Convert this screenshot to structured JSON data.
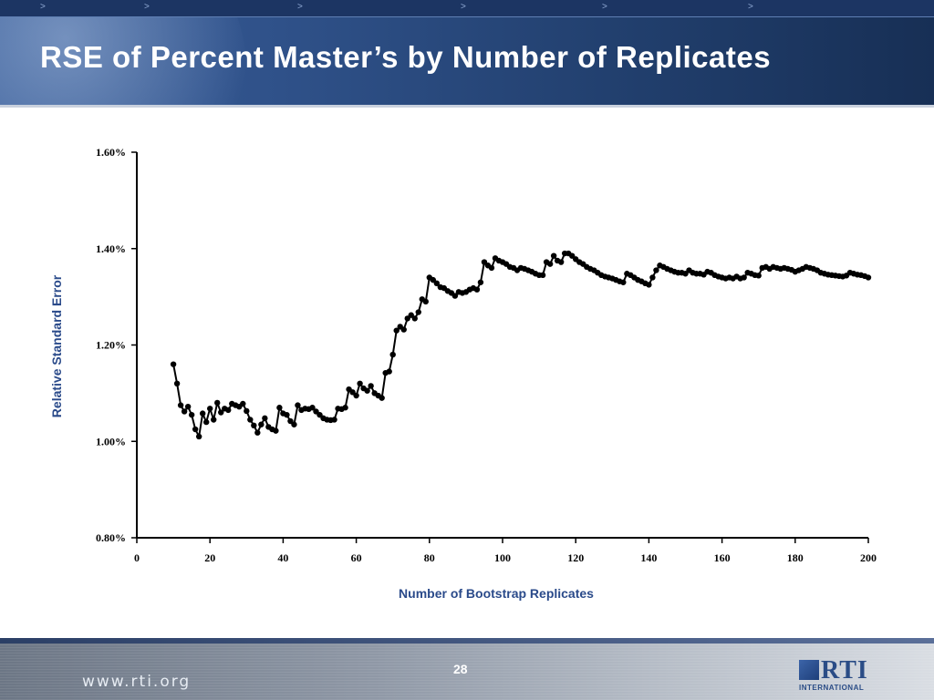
{
  "slide": {
    "title": "RSE of Percent Master’s by Number of Replicates",
    "page_number": "28",
    "footer_url": "www.rti.org",
    "logo": {
      "word": "RTI",
      "sub": "INTERNATIONAL"
    }
  },
  "colors": {
    "header": "#2f5189",
    "series": "#000000",
    "axis_label": "#2a4a8a",
    "title_text": "#ffffff"
  },
  "chart_data": {
    "type": "line",
    "title": "",
    "xlabel": "Number of Bootstrap Replicates",
    "ylabel": "Relative Standard Error",
    "xlim": [
      0,
      200
    ],
    "ylim": [
      0.8,
      1.6
    ],
    "x_ticks": [
      0,
      20,
      40,
      60,
      80,
      100,
      120,
      140,
      160,
      180,
      200
    ],
    "x_tick_labels": [
      "0",
      "20",
      "40",
      "60",
      "80",
      "100",
      "120",
      "140",
      "160",
      "180",
      "200"
    ],
    "y_ticks": [
      0.8,
      1.0,
      1.2,
      1.4,
      1.6
    ],
    "y_tick_labels": [
      "0.80%",
      "1.00%",
      "1.20%",
      "1.40%",
      "1.60%"
    ],
    "grid": false,
    "markers": true,
    "series": [
      {
        "x_start": 10,
        "x_step": 1,
        "values": [
          1.16,
          1.12,
          1.075,
          1.062,
          1.072,
          1.055,
          1.025,
          1.01,
          1.058,
          1.04,
          1.068,
          1.045,
          1.08,
          1.06,
          1.068,
          1.065,
          1.078,
          1.075,
          1.072,
          1.078,
          1.063,
          1.045,
          1.033,
          1.018,
          1.035,
          1.048,
          1.03,
          1.025,
          1.022,
          1.07,
          1.058,
          1.055,
          1.042,
          1.035,
          1.075,
          1.065,
          1.068,
          1.067,
          1.07,
          1.062,
          1.055,
          1.048,
          1.045,
          1.044,
          1.045,
          1.068,
          1.067,
          1.07,
          1.108,
          1.102,
          1.095,
          1.12,
          1.11,
          1.105,
          1.115,
          1.1,
          1.095,
          1.09,
          1.142,
          1.145,
          1.18,
          1.23,
          1.238,
          1.232,
          1.255,
          1.262,
          1.255,
          1.268,
          1.295,
          1.29,
          1.34,
          1.335,
          1.328,
          1.32,
          1.318,
          1.312,
          1.308,
          1.302,
          1.31,
          1.308,
          1.31,
          1.315,
          1.318,
          1.315,
          1.33,
          1.372,
          1.365,
          1.36,
          1.38,
          1.375,
          1.372,
          1.368,
          1.362,
          1.36,
          1.355,
          1.36,
          1.358,
          1.355,
          1.352,
          1.348,
          1.345,
          1.345,
          1.372,
          1.368,
          1.385,
          1.375,
          1.372,
          1.39,
          1.39,
          1.385,
          1.378,
          1.372,
          1.368,
          1.362,
          1.358,
          1.355,
          1.35,
          1.345,
          1.342,
          1.34,
          1.338,
          1.335,
          1.332,
          1.33,
          1.348,
          1.345,
          1.34,
          1.335,
          1.332,
          1.328,
          1.325,
          1.34,
          1.355,
          1.365,
          1.362,
          1.358,
          1.355,
          1.352,
          1.35,
          1.35,
          1.348,
          1.355,
          1.35,
          1.348,
          1.348,
          1.346,
          1.352,
          1.35,
          1.345,
          1.342,
          1.34,
          1.338,
          1.34,
          1.338,
          1.342,
          1.338,
          1.34,
          1.35,
          1.348,
          1.345,
          1.344,
          1.36,
          1.362,
          1.358,
          1.362,
          1.36,
          1.358,
          1.36,
          1.358,
          1.356,
          1.352,
          1.355,
          1.358,
          1.362,
          1.36,
          1.358,
          1.355,
          1.35,
          1.348,
          1.346,
          1.345,
          1.344,
          1.343,
          1.342,
          1.344,
          1.35,
          1.348,
          1.346,
          1.345,
          1.343,
          1.34
        ]
      }
    ]
  }
}
